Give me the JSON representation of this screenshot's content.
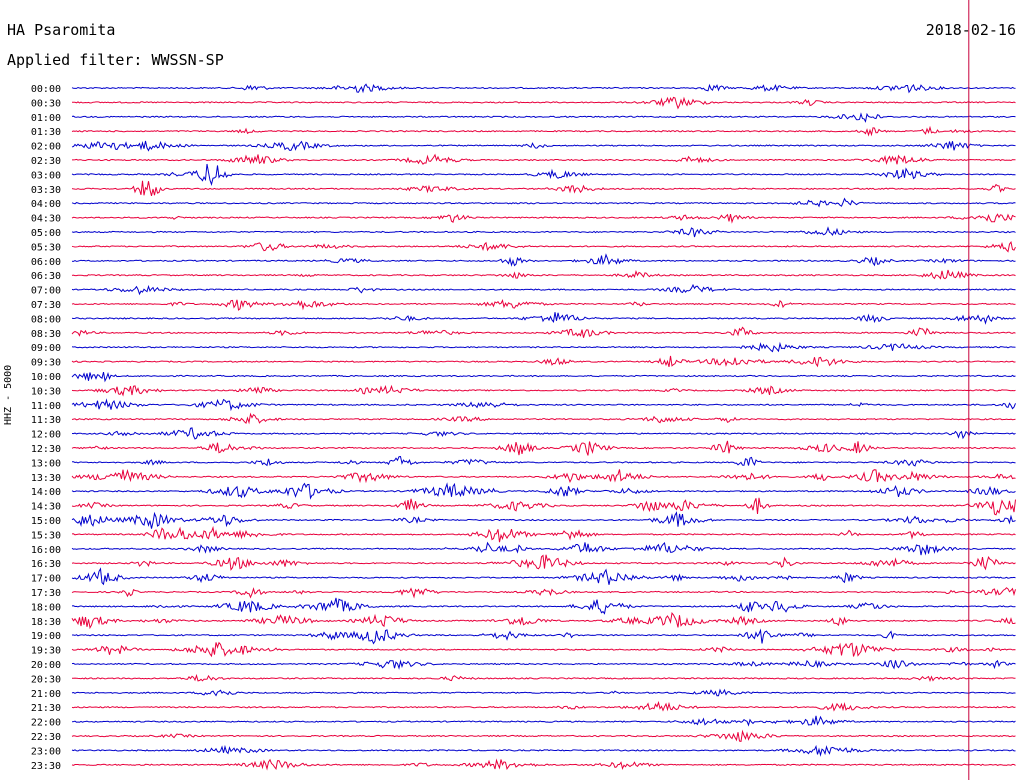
{
  "header": {
    "station": "HA Psaromita",
    "filter": "Applied filter: WWSSN-SP",
    "date": "2018-02-16"
  },
  "chart_data": {
    "type": "line",
    "title": "HA Psaromita",
    "subtitle": "Applied filter: WWSSN-SP",
    "ylabel": "HHZ - 5000",
    "colors": [
      "#0000cc",
      "#e8003c"
    ],
    "marker_color": "#c8003c",
    "row_labels": [
      "00:00",
      "00:30",
      "01:00",
      "01:30",
      "02:00",
      "02:30",
      "03:00",
      "03:30",
      "04:00",
      "04:30",
      "05:00",
      "05:30",
      "06:00",
      "06:30",
      "07:00",
      "07:30",
      "08:00",
      "08:30",
      "09:00",
      "09:30",
      "10:00",
      "10:30",
      "11:00",
      "11:30",
      "12:00",
      "12:30",
      "13:00",
      "13:30",
      "14:00",
      "14:30",
      "15:00",
      "15:30",
      "16:00",
      "16:30",
      "17:00",
      "17:30",
      "18:00",
      "18:30",
      "19:00",
      "19:30",
      "20:00",
      "20:30",
      "21:00",
      "21:30",
      "22:00",
      "22:30",
      "23:00",
      "23:30"
    ],
    "current_time_fraction": 0.95
  }
}
